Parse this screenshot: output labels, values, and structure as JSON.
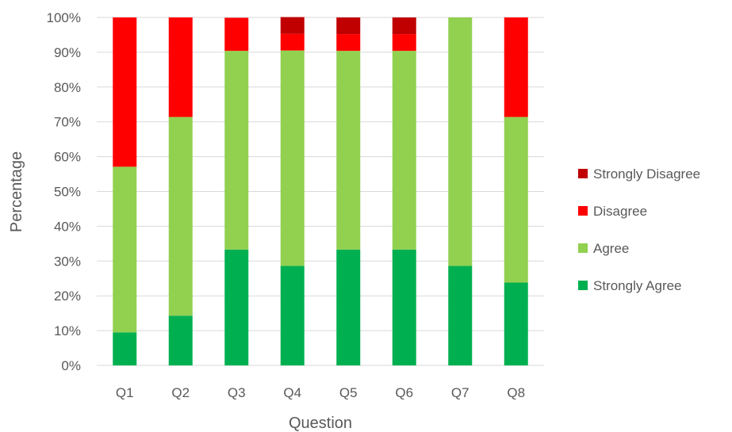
{
  "chart_data": {
    "type": "bar",
    "stacked": true,
    "normalized": true,
    "xlabel": "Question",
    "ylabel": "Percentage",
    "categories": [
      "Q1",
      "Q2",
      "Q3",
      "Q4",
      "Q5",
      "Q6",
      "Q7",
      "Q8"
    ],
    "ylim": [
      0,
      100
    ],
    "yticks": [
      0,
      10,
      20,
      30,
      40,
      50,
      60,
      70,
      80,
      90,
      100
    ],
    "ytick_labels": [
      "0%",
      "10%",
      "20%",
      "30%",
      "40%",
      "50%",
      "60%",
      "70%",
      "80%",
      "90%",
      "100%"
    ],
    "grid": true,
    "legend_position": "right",
    "series": [
      {
        "name": "Strongly Agree",
        "color": "#00b050",
        "values": [
          9.5,
          14.3,
          33.3,
          28.6,
          33.3,
          33.3,
          28.6,
          23.8
        ]
      },
      {
        "name": "Agree",
        "color": "#92d050",
        "values": [
          47.6,
          57.1,
          57.1,
          61.9,
          57.1,
          57.1,
          71.4,
          47.6
        ]
      },
      {
        "name": "Disagree",
        "color": "#ff0000",
        "values": [
          42.9,
          28.6,
          9.5,
          4.8,
          4.8,
          4.8,
          0,
          28.6
        ]
      },
      {
        "name": "Strongly Disagree",
        "color": "#c00000",
        "values": [
          0,
          0,
          0,
          4.8,
          4.8,
          4.8,
          0,
          0
        ]
      }
    ]
  }
}
